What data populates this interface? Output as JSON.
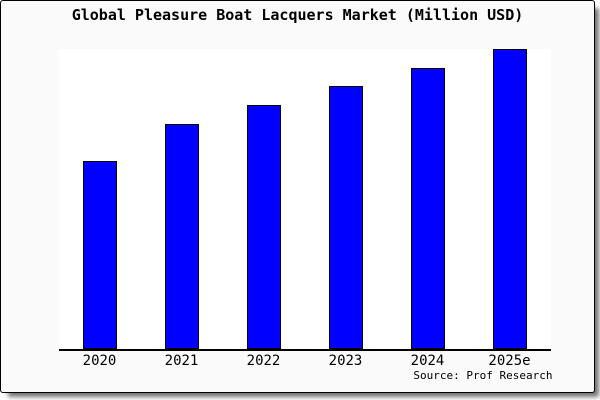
{
  "frame": {
    "background": "#fafafa",
    "border_color": "#000000",
    "plot_background": "#ffffff"
  },
  "chart_data": {
    "type": "bar",
    "title": "Global Pleasure Boat Lacquers Market (Million USD)",
    "categories": [
      "2020",
      "2021",
      "2022",
      "2023",
      "2024",
      "2025e"
    ],
    "values": [
      188,
      225,
      244,
      263,
      281,
      300
    ],
    "values_note": "relative units estimated from bar pixel heights; no value axis labels shown",
    "ylim": [
      0,
      300
    ],
    "xlabel": "",
    "ylabel": "",
    "grid": false,
    "legend": false,
    "y_axis_shown": false,
    "bar_fill": "#0000ff",
    "bar_border": "#000000",
    "source_note": "Source: Prof Research"
  }
}
